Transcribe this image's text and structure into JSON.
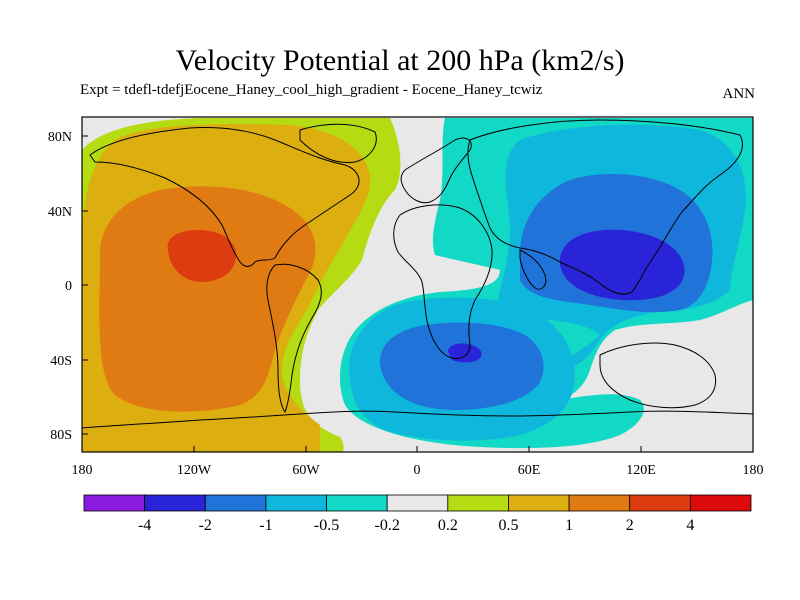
{
  "title": "Velocity Potential at 200 hPa (km2/s)",
  "subtitle": "Expt = tdefl-tdefjEocene_Haney_cool_high_gradient - Eocene_Haney_tcwiz",
  "season": "ANN",
  "map": {
    "projection": "cylindrical equidistant",
    "lon_range": [
      -180,
      180
    ],
    "lat_range": [
      -90,
      90
    ],
    "x_ticks": [
      "180",
      "120W",
      "60W",
      "0",
      "60E",
      "120E",
      "180"
    ],
    "y_ticks": [
      "80N",
      "40N",
      "0",
      "40S",
      "80S"
    ],
    "colors": {
      "c1": "#8b1ae0",
      "c2": "#2a24d8",
      "c3": "#1f73d9",
      "c4": "#10b7dc",
      "c5": "#12d8c6",
      "c6": "#e8e8e8",
      "c7": "#b5dc12",
      "c8": "#dcae10",
      "c9": "#e07a12",
      "c10": "#dc3c10",
      "c11": "#dc0a0a"
    }
  },
  "colorbar": {
    "levels": [
      "-4",
      "-2",
      "-1",
      "-0.5",
      "-0.2",
      "0.2",
      "0.5",
      "1",
      "2",
      "4"
    ],
    "colors": [
      "#8b1ae0",
      "#2a24d8",
      "#1f73d9",
      "#10b7dc",
      "#12d8c6",
      "#e8e8e8",
      "#b5dc12",
      "#dcae10",
      "#e07a12",
      "#dc3c10",
      "#dc0a0a"
    ]
  }
}
